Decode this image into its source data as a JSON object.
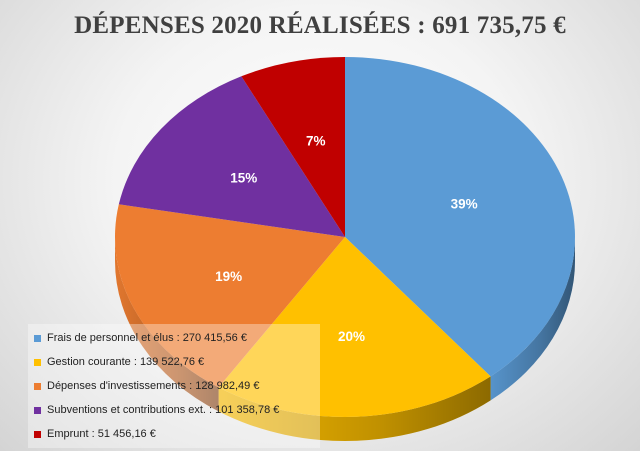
{
  "title": "DÉPENSES 2020 RÉALISÉES : 691 735,75 €",
  "chart_data": {
    "type": "pie",
    "title": "DÉPENSES 2020 RÉALISÉES : 691 735,75 €",
    "legend_position": "bottom-left",
    "slices": [
      {
        "label": "Frais de personnel et élus : 270 415,56 €",
        "name": "Frais de personnel et élus",
        "value": 270415.56,
        "percent_label": "39%",
        "color": "#5b9bd5"
      },
      {
        "label": "Gestion courante : 139 522,76 €",
        "name": "Gestion courante",
        "value": 139522.76,
        "percent_label": "20%",
        "color": "#ffc000"
      },
      {
        "label": "Dépenses d'investissements : 128 982,49 €",
        "name": "Dépenses d'investissements",
        "value": 128982.49,
        "percent_label": "19%",
        "color": "#ed7d31"
      },
      {
        "label": "Subventions et contributions ext. : 101 358,78 €",
        "name": "Subventions et contributions ext.",
        "value": 101358.78,
        "percent_label": "15%",
        "color": "#7030a0"
      },
      {
        "label": "Emprunt : 51 456,16 €",
        "name": "Emprunt",
        "value": 51456.16,
        "percent_label": "7%",
        "color": "#c00000"
      }
    ]
  }
}
